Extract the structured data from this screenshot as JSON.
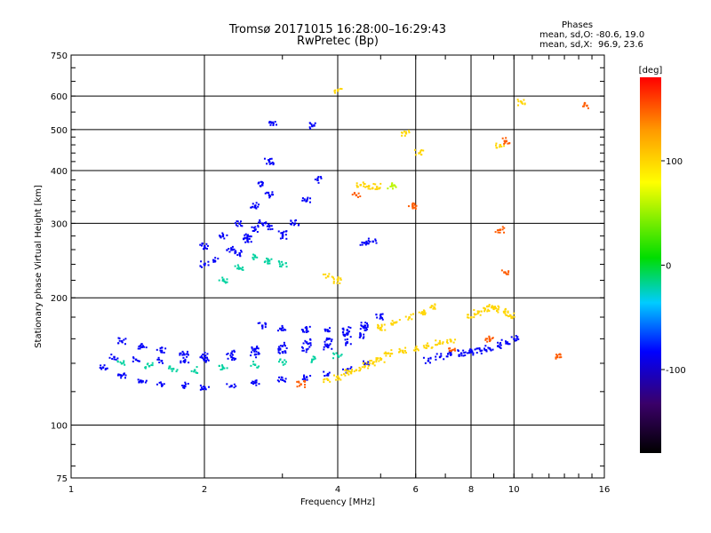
{
  "chart_data": {
    "type": "scatter",
    "title": "Tromsø 20171015 16:28:00–16:29:43",
    "subtitle": "RwPretec (Bp)",
    "xlabel": "Frequency [MHz]",
    "ylabel": "Stationary phase Virtual Height [km]",
    "x_scale": "log",
    "y_scale": "log",
    "xlim": [
      1,
      16
    ],
    "ylim": [
      75,
      750
    ],
    "x_ticks": [
      1,
      2,
      4,
      6,
      8,
      10,
      16
    ],
    "x_tick_labels": [
      "1",
      "2",
      "4",
      "6",
      "8",
      "10",
      "16"
    ],
    "y_ticks": [
      75,
      100,
      200,
      300,
      400,
      500,
      600,
      750
    ],
    "y_tick_labels": [
      "75",
      "100",
      "200",
      "300",
      "400",
      "500",
      "600",
      "750"
    ],
    "grid": true,
    "stats": {
      "heading": "Phases",
      "line_o": "mean, sd,O: -80.6, 19.0",
      "line_x": "mean, sd,X:  96.9, 23.6"
    },
    "colorbar": {
      "label": "[deg]",
      "range": [
        -180,
        180
      ],
      "ticks": [
        100,
        0,
        -100
      ],
      "tick_labels": [
        "100",
        "0",
        "-100"
      ],
      "colormap": "rainbow (black-purple-blue-cyan-green-yellow-orange-red)"
    },
    "series": [
      {
        "phase_deg": -85,
        "traces": [
          {
            "x": [
              1.18,
              1.3,
              1.45,
              1.6,
              1.8,
              2.0,
              2.3,
              2.6,
              3.0,
              3.4,
              3.8,
              4.2,
              4.6
            ],
            "y": [
              137,
              131,
              127,
              125,
              124,
              123,
              124,
              126,
              128,
              130,
              132,
              135,
              140
            ]
          },
          {
            "x": [
              1.25,
              1.4,
              1.6,
              1.8,
              2.0,
              2.3,
              2.6,
              3.0,
              3.4,
              3.8,
              4.2,
              4.5
            ],
            "y": [
              145,
              143,
              142,
              142,
              143,
              145,
              147,
              149,
              151,
              153,
              157,
              163
            ]
          },
          {
            "x": [
              1.3,
              1.45,
              1.6,
              1.8,
              2.0,
              2.3,
              2.6,
              3.0,
              3.4,
              3.8,
              4.2,
              4.6
            ],
            "y": [
              158,
              154,
              150,
              147,
              146,
              148,
              151,
              154,
              157,
              160,
              164,
              170
            ]
          },
          {
            "x": [
              2.7,
              3.0,
              3.4,
              3.8,
              4.2,
              4.6,
              5.0
            ],
            "y": [
              172,
              170,
              168,
              167,
              168,
              172,
              180
            ]
          },
          {
            "x": [
              2.0,
              2.2,
              2.4,
              2.6,
              2.7,
              2.8,
              2.85
            ],
            "y": [
              265,
              280,
              300,
              330,
              370,
              420,
              520
            ]
          },
          {
            "x": [
              2.0,
              2.1,
              2.3,
              2.5,
              2.7,
              2.8
            ],
            "y": [
              240,
              245,
              260,
              280,
              300,
              350
            ]
          },
          {
            "x": [
              2.4,
              2.5,
              2.6,
              2.8,
              3.0
            ],
            "y": [
              255,
              275,
              290,
              295,
              285
            ]
          },
          {
            "x": [
              3.0,
              3.2,
              3.4,
              3.6
            ],
            "y": [
              280,
              300,
              340,
              380
            ]
          },
          {
            "x": [
              4.6,
              4.8
            ],
            "y": [
              270,
              272
            ]
          },
          {
            "x": [
              6.4,
              6.8,
              7.2,
              7.6,
              8.0,
              8.4,
              8.8,
              9.2,
              9.6,
              10.0
            ],
            "y": [
              142,
              145,
              147,
              148,
              149,
              150,
              152,
              154,
              157,
              160
            ]
          },
          {
            "x": [
              3.5
            ],
            "y": [
              510
            ]
          }
        ]
      },
      {
        "phase_deg": -20,
        "traces": [
          {
            "x": [
              2.2,
              2.4,
              2.6,
              2.8,
              3.0
            ],
            "y": [
              220,
              235,
              250,
              245,
              240
            ]
          },
          {
            "x": [
              1.3,
              1.5,
              1.7,
              1.9,
              2.2,
              2.6,
              3.0,
              3.5,
              4.0
            ],
            "y": [
              140,
              138,
              136,
              135,
              137,
              139,
              141,
              143,
              146
            ]
          }
        ]
      },
      {
        "phase_deg": 100,
        "traces": [
          {
            "x": [
              3.8,
              4.0,
              4.2,
              4.4,
              4.6,
              4.8,
              5.0
            ],
            "y": [
              128,
              130,
              133,
              135,
              138,
              140,
              143
            ]
          },
          {
            "x": [
              5.2,
              5.6,
              6.0,
              6.4,
              6.8,
              7.2
            ],
            "y": [
              148,
              150,
              152,
              154,
              156,
              158
            ]
          },
          {
            "x": [
              5.0,
              5.4,
              5.8,
              6.2,
              6.6
            ],
            "y": [
              170,
              175,
              180,
              185,
              190
            ]
          },
          {
            "x": [
              8.0,
              8.3,
              8.6,
              8.9,
              9.2,
              9.5,
              9.8
            ],
            "y": [
              180,
              185,
              188,
              190,
              188,
              185,
              182
            ]
          },
          {
            "x": [
              3.8,
              4.0
            ],
            "y": [
              225,
              220
            ]
          },
          {
            "x": [
              4.5,
              4.7,
              4.9
            ],
            "y": [
              370,
              368,
              366
            ]
          },
          {
            "x": [
              4.0,
              5.7,
              6.1,
              9.3,
              10.4
            ],
            "y": [
              620,
              490,
              440,
              460,
              580
            ]
          }
        ]
      },
      {
        "phase_deg": 60,
        "traces": [
          {
            "x": [
              5.3
            ],
            "y": [
              368
            ]
          }
        ]
      },
      {
        "phase_deg": 150,
        "traces": [
          {
            "x": [
              3.3,
              4.4,
              5.9,
              7.2,
              8.8,
              9.3,
              9.5,
              9.6,
              12.5,
              14.6
            ],
            "y": [
              125,
              350,
              330,
              150,
              160,
              290,
              230,
              470,
              145,
              570
            ]
          }
        ]
      }
    ]
  }
}
